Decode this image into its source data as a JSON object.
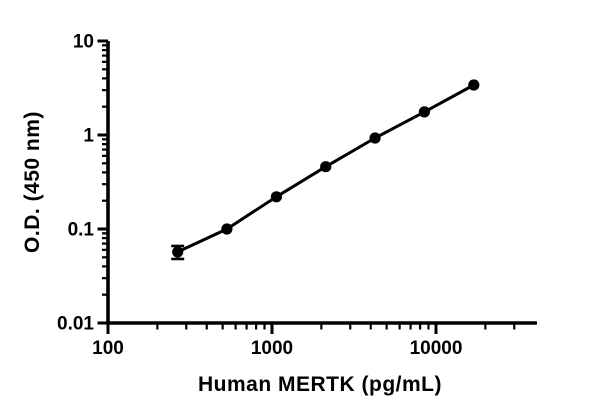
{
  "figure": {
    "background_color": "#ffffff",
    "foreground_color": "#000000"
  },
  "chart_data": {
    "type": "scatter",
    "title": "",
    "xlabel": "Human MERTK (pg/mL)",
    "ylabel": "O.D. (450 nm)",
    "x_scale": "log",
    "y_scale": "log",
    "xlim": [
      100,
      40000
    ],
    "ylim": [
      0.01,
      10
    ],
    "x_major_ticks": [
      100,
      1000,
      10000
    ],
    "x_major_tick_labels": [
      "100",
      "1000",
      "10000"
    ],
    "y_major_ticks": [
      10,
      1,
      0.1,
      0.01
    ],
    "y_major_tick_labels": [
      "10",
      "1",
      "0.1",
      "0.01"
    ],
    "x_minor_ticks": [
      200,
      300,
      400,
      500,
      600,
      700,
      800,
      900,
      2000,
      3000,
      4000,
      5000,
      6000,
      7000,
      8000,
      9000,
      20000,
      30000
    ],
    "y_minor_ticks": [
      0.02,
      0.03,
      0.04,
      0.05,
      0.06,
      0.07,
      0.08,
      0.09,
      0.2,
      0.3,
      0.4,
      0.5,
      0.6,
      0.7,
      0.8,
      0.9,
      2,
      3,
      4,
      5,
      6,
      7,
      8,
      9
    ],
    "grid": false,
    "legend": false,
    "series": [
      {
        "name": "standard-curve",
        "marker": "filled-circle",
        "line": "solid",
        "color": "#000000",
        "points": [
          {
            "x": 266,
            "od": 0.057,
            "err": 0.009
          },
          {
            "x": 531,
            "od": 0.1,
            "err": 0
          },
          {
            "x": 1063,
            "od": 0.22,
            "err": 0
          },
          {
            "x": 2125,
            "od": 0.46,
            "err": 0
          },
          {
            "x": 4250,
            "od": 0.93,
            "err": 0
          },
          {
            "x": 8500,
            "od": 1.76,
            "err": 0
          },
          {
            "x": 17000,
            "od": 3.4,
            "err": 0
          }
        ]
      }
    ]
  }
}
